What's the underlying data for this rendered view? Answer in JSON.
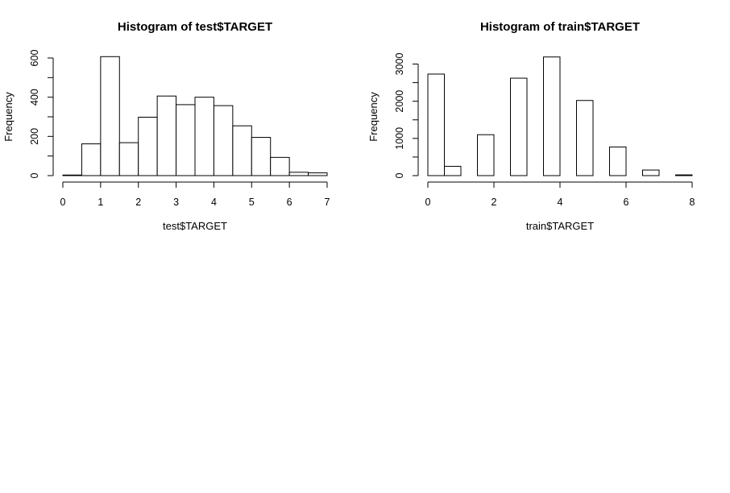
{
  "chart_data": [
    {
      "type": "bar",
      "title": "Histogram of test$TARGET",
      "xlabel": "test$TARGET",
      "ylabel": "Frequency",
      "bin_edges": [
        0,
        0.5,
        1,
        1.5,
        2,
        2.5,
        3,
        3.5,
        4,
        4.5,
        5,
        5.5,
        6,
        6.5,
        7
      ],
      "values": [
        3,
        162,
        607,
        168,
        298,
        406,
        362,
        400,
        357,
        254,
        195,
        93,
        17,
        14
      ],
      "xlim": [
        0,
        7
      ],
      "ylim": [
        0,
        600
      ],
      "xticks": [
        "0",
        "1",
        "2",
        "3",
        "4",
        "5",
        "6",
        "7"
      ],
      "yticks": [
        "0",
        "200",
        "400",
        "600"
      ],
      "grid": false,
      "legend": "none"
    },
    {
      "type": "bar",
      "title": "Histogram of train$TARGET",
      "xlabel": "train$TARGET",
      "ylabel": "Frequency",
      "bin_edges": [
        0,
        0.5,
        1,
        1.5,
        2,
        2.5,
        3,
        3.5,
        4,
        4.5,
        5,
        5.5,
        6,
        6.5,
        7,
        7.5,
        8
      ],
      "values": [
        2730,
        250,
        0,
        1100,
        0,
        2620,
        0,
        3190,
        0,
        2020,
        0,
        770,
        0,
        150,
        0,
        20
      ],
      "xlim": [
        0,
        8
      ],
      "ylim": [
        0,
        3000
      ],
      "xticks": [
        "0",
        "2",
        "4",
        "6",
        "8"
      ],
      "yticks": [
        "0",
        "1000",
        "2000",
        "3000"
      ],
      "grid": false,
      "legend": "none"
    }
  ]
}
